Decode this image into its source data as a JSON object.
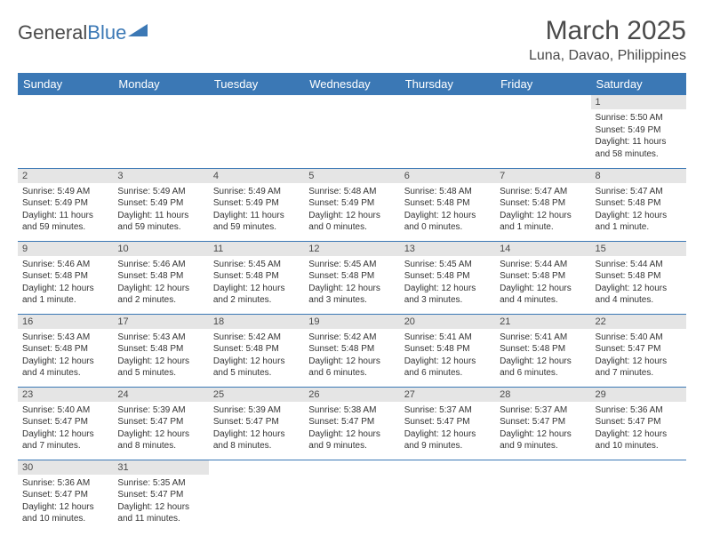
{
  "brand": {
    "part1": "General",
    "part2": "Blue"
  },
  "title": "March 2025",
  "subtitle": "Luna, Davao, Philippines",
  "colors": {
    "header_bg": "#3b78b5",
    "header_text": "#ffffff",
    "daynum_bg": "#e5e5e5",
    "border": "#3b78b5",
    "text": "#333333",
    "title_text": "#4a4a4a",
    "page_bg": "#ffffff"
  },
  "typography": {
    "title_fontsize": 30,
    "subtitle_fontsize": 16,
    "header_fontsize": 13,
    "daynum_fontsize": 11,
    "body_fontsize": 10
  },
  "layout": {
    "columns": 7,
    "rows": 6
  },
  "weekdays": [
    "Sunday",
    "Monday",
    "Tuesday",
    "Wednesday",
    "Thursday",
    "Friday",
    "Saturday"
  ],
  "days": {
    "1": {
      "sunrise": "5:50 AM",
      "sunset": "5:49 PM",
      "daylight": "11 hours and 58 minutes."
    },
    "2": {
      "sunrise": "5:49 AM",
      "sunset": "5:49 PM",
      "daylight": "11 hours and 59 minutes."
    },
    "3": {
      "sunrise": "5:49 AM",
      "sunset": "5:49 PM",
      "daylight": "11 hours and 59 minutes."
    },
    "4": {
      "sunrise": "5:49 AM",
      "sunset": "5:49 PM",
      "daylight": "11 hours and 59 minutes."
    },
    "5": {
      "sunrise": "5:48 AM",
      "sunset": "5:49 PM",
      "daylight": "12 hours and 0 minutes."
    },
    "6": {
      "sunrise": "5:48 AM",
      "sunset": "5:48 PM",
      "daylight": "12 hours and 0 minutes."
    },
    "7": {
      "sunrise": "5:47 AM",
      "sunset": "5:48 PM",
      "daylight": "12 hours and 1 minute."
    },
    "8": {
      "sunrise": "5:47 AM",
      "sunset": "5:48 PM",
      "daylight": "12 hours and 1 minute."
    },
    "9": {
      "sunrise": "5:46 AM",
      "sunset": "5:48 PM",
      "daylight": "12 hours and 1 minute."
    },
    "10": {
      "sunrise": "5:46 AM",
      "sunset": "5:48 PM",
      "daylight": "12 hours and 2 minutes."
    },
    "11": {
      "sunrise": "5:45 AM",
      "sunset": "5:48 PM",
      "daylight": "12 hours and 2 minutes."
    },
    "12": {
      "sunrise": "5:45 AM",
      "sunset": "5:48 PM",
      "daylight": "12 hours and 3 minutes."
    },
    "13": {
      "sunrise": "5:45 AM",
      "sunset": "5:48 PM",
      "daylight": "12 hours and 3 minutes."
    },
    "14": {
      "sunrise": "5:44 AM",
      "sunset": "5:48 PM",
      "daylight": "12 hours and 4 minutes."
    },
    "15": {
      "sunrise": "5:44 AM",
      "sunset": "5:48 PM",
      "daylight": "12 hours and 4 minutes."
    },
    "16": {
      "sunrise": "5:43 AM",
      "sunset": "5:48 PM",
      "daylight": "12 hours and 4 minutes."
    },
    "17": {
      "sunrise": "5:43 AM",
      "sunset": "5:48 PM",
      "daylight": "12 hours and 5 minutes."
    },
    "18": {
      "sunrise": "5:42 AM",
      "sunset": "5:48 PM",
      "daylight": "12 hours and 5 minutes."
    },
    "19": {
      "sunrise": "5:42 AM",
      "sunset": "5:48 PM",
      "daylight": "12 hours and 6 minutes."
    },
    "20": {
      "sunrise": "5:41 AM",
      "sunset": "5:48 PM",
      "daylight": "12 hours and 6 minutes."
    },
    "21": {
      "sunrise": "5:41 AM",
      "sunset": "5:48 PM",
      "daylight": "12 hours and 6 minutes."
    },
    "22": {
      "sunrise": "5:40 AM",
      "sunset": "5:47 PM",
      "daylight": "12 hours and 7 minutes."
    },
    "23": {
      "sunrise": "5:40 AM",
      "sunset": "5:47 PM",
      "daylight": "12 hours and 7 minutes."
    },
    "24": {
      "sunrise": "5:39 AM",
      "sunset": "5:47 PM",
      "daylight": "12 hours and 8 minutes."
    },
    "25": {
      "sunrise": "5:39 AM",
      "sunset": "5:47 PM",
      "daylight": "12 hours and 8 minutes."
    },
    "26": {
      "sunrise": "5:38 AM",
      "sunset": "5:47 PM",
      "daylight": "12 hours and 9 minutes."
    },
    "27": {
      "sunrise": "5:37 AM",
      "sunset": "5:47 PM",
      "daylight": "12 hours and 9 minutes."
    },
    "28": {
      "sunrise": "5:37 AM",
      "sunset": "5:47 PM",
      "daylight": "12 hours and 9 minutes."
    },
    "29": {
      "sunrise": "5:36 AM",
      "sunset": "5:47 PM",
      "daylight": "12 hours and 10 minutes."
    },
    "30": {
      "sunrise": "5:36 AM",
      "sunset": "5:47 PM",
      "daylight": "12 hours and 10 minutes."
    },
    "31": {
      "sunrise": "5:35 AM",
      "sunset": "5:47 PM",
      "daylight": "12 hours and 11 minutes."
    }
  },
  "labels": {
    "sunrise": "Sunrise:",
    "sunset": "Sunset:",
    "daylight": "Daylight:"
  },
  "grid": [
    [
      null,
      null,
      null,
      null,
      null,
      null,
      "1"
    ],
    [
      "2",
      "3",
      "4",
      "5",
      "6",
      "7",
      "8"
    ],
    [
      "9",
      "10",
      "11",
      "12",
      "13",
      "14",
      "15"
    ],
    [
      "16",
      "17",
      "18",
      "19",
      "20",
      "21",
      "22"
    ],
    [
      "23",
      "24",
      "25",
      "26",
      "27",
      "28",
      "29"
    ],
    [
      "30",
      "31",
      null,
      null,
      null,
      null,
      null
    ]
  ]
}
